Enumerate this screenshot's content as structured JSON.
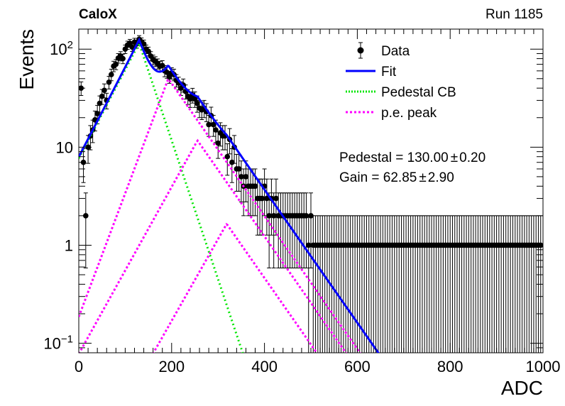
{
  "header": {
    "left": "CaloX",
    "right": "Run 1185"
  },
  "chart_data": {
    "type": "scatter",
    "xlabel": "ADC",
    "ylabel": "Events",
    "xlim": [
      0,
      1000
    ],
    "ylim": [
      0.08,
      160
    ],
    "yscale": "log",
    "x_ticks": [
      "0",
      "200",
      "400",
      "600",
      "800",
      "1000"
    ],
    "y_ticks": [
      {
        "value": 0.1,
        "base": "10",
        "exp": "−1"
      },
      {
        "value": 1,
        "label": "1"
      },
      {
        "value": 10,
        "label": "10"
      },
      {
        "value": 100,
        "base": "10",
        "exp": "2"
      }
    ],
    "legend": {
      "placement": "top-right",
      "entries": [
        {
          "label": "Data",
          "key": "data"
        },
        {
          "label": "Fit",
          "key": "fit"
        },
        {
          "label": "Pedestal CB",
          "key": "ped"
        },
        {
          "label": "p.e. peak",
          "key": "pe"
        }
      ]
    },
    "annotations": [
      {
        "text": "Pedestal = 130.00",
        "pm": "±",
        "err": "0.20"
      },
      {
        "text": "Gain = 62.85",
        "pm": "±",
        "err": "2.90"
      }
    ],
    "colors": {
      "data": "#000000",
      "fit": "#0000ff",
      "ped": "#00e600",
      "pe": "#ff00ff"
    },
    "fit_model": {
      "pedestal": 130.0,
      "pedestal_err": 0.2,
      "gain": 62.85,
      "gain_err": 2.9,
      "pedestal_cb": {
        "peak": 115,
        "left_log_slope": 0.0208,
        "right_log_slope": 0.0326
      },
      "pe_peaks": [
        {
          "mu": 192.85,
          "peak": 50,
          "left_log_slope": 0.029,
          "right_log_slope": 0.0156
        },
        {
          "mu": 255.7,
          "peak": 11.7,
          "left_log_slope": 0.0196,
          "right_log_slope": 0.0156
        },
        {
          "mu": 318.55,
          "peak": 1.65,
          "left_log_slope": 0.0192,
          "right_log_slope": 0.0156
        }
      ]
    },
    "data_points": {
      "x": [
        5,
        10,
        15,
        20,
        25,
        30,
        35,
        40,
        45,
        50,
        55,
        60,
        65,
        70,
        75,
        80,
        85,
        90,
        95,
        100,
        105,
        110,
        115,
        120,
        125,
        130,
        135,
        140,
        145,
        150,
        155,
        160,
        165,
        170,
        175,
        180,
        185,
        190,
        195,
        200,
        205,
        210,
        215,
        220,
        225,
        230,
        235,
        240,
        245,
        250,
        255,
        260,
        265,
        270,
        275,
        280,
        285,
        290,
        295,
        300,
        305,
        310,
        315,
        320,
        325,
        330,
        335,
        340,
        345,
        350,
        355,
        360,
        365,
        370,
        375,
        380,
        385,
        390,
        395,
        400,
        405,
        410,
        415,
        420,
        425,
        430,
        435,
        440,
        445,
        450,
        455,
        460,
        465,
        470,
        475,
        480,
        485,
        490,
        495,
        500,
        505,
        510,
        515,
        520,
        525,
        530,
        535,
        540,
        545,
        550,
        555,
        560,
        565,
        570,
        575,
        580,
        585,
        590,
        595,
        600,
        605,
        610,
        615,
        620,
        625,
        630,
        635,
        640,
        645,
        650,
        655,
        660,
        665,
        670,
        675,
        680,
        685,
        690,
        695,
        700,
        705,
        710,
        715,
        720,
        725,
        730,
        735,
        740,
        745,
        750,
        755,
        760,
        765,
        770,
        775,
        780,
        785,
        790,
        795,
        800,
        805,
        810,
        815,
        820,
        825,
        830,
        835,
        840,
        845,
        850,
        855,
        860,
        865,
        870,
        875,
        880,
        885,
        890,
        895,
        900,
        905,
        910,
        915,
        920,
        925,
        930,
        935,
        940,
        945,
        950,
        955,
        960,
        965,
        970,
        975,
        980,
        985,
        990,
        995
      ],
      "y": [
        40,
        7,
        2,
        10,
        13,
        15,
        19,
        22,
        28,
        33,
        38,
        30,
        46,
        55,
        67,
        70,
        81,
        85,
        80,
        100,
        110,
        115,
        105,
        118,
        113,
        126,
        119,
        113,
        100,
        95,
        85,
        78,
        75,
        71,
        67,
        68,
        60,
        58,
        52,
        57,
        55,
        48,
        45,
        40,
        43,
        37,
        33,
        31,
        34,
        31,
        28,
        25,
        24,
        25,
        23,
        17,
        21,
        17,
        15,
        11,
        14,
        13,
        13,
        8,
        12,
        7,
        10,
        6,
        6,
        5,
        4,
        5,
        4,
        4,
        4,
        4,
        3,
        3,
        3,
        4,
        3,
        2,
        3,
        2,
        3,
        2,
        2,
        2,
        2,
        2,
        2,
        2,
        2,
        2,
        2,
        2,
        2,
        2,
        1,
        2,
        1,
        1,
        1,
        1,
        1,
        1,
        1,
        1,
        1,
        1,
        1,
        1,
        1,
        1,
        1,
        1,
        1,
        1,
        1,
        1,
        1,
        1,
        1,
        1,
        1,
        1,
        1,
        1,
        1,
        1,
        1,
        1,
        1,
        1,
        1,
        1,
        1,
        1,
        1,
        1,
        1,
        1,
        1,
        1,
        1,
        1,
        1,
        1,
        1,
        1,
        1,
        1,
        1,
        1,
        1,
        1,
        1,
        1,
        1,
        1,
        1,
        1,
        1,
        1,
        1,
        1,
        1,
        1,
        1,
        1,
        1,
        1,
        1,
        1,
        1,
        1,
        1,
        1,
        1,
        1,
        1,
        1,
        1,
        1,
        1,
        1,
        1,
        1,
        1,
        1,
        1,
        1,
        1,
        1,
        1,
        1,
        1,
        1,
        1
      ]
    }
  }
}
